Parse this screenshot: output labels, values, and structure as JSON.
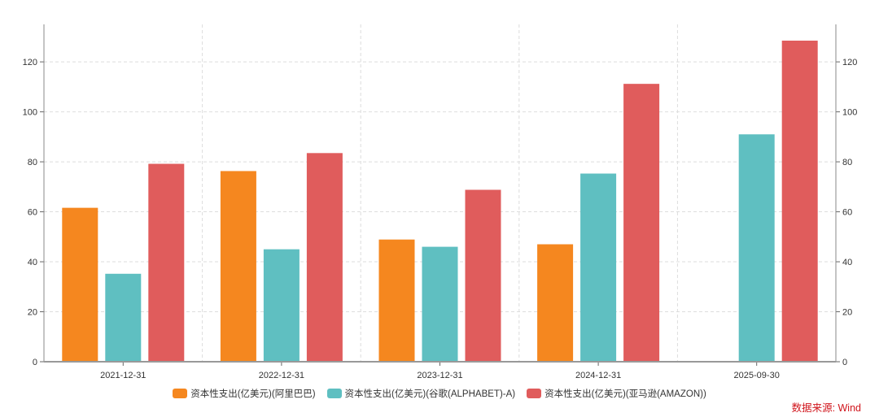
{
  "chart_data": {
    "type": "bar",
    "categories": [
      "2021-12-31",
      "2022-12-31",
      "2023-12-31",
      "2024-12-31",
      "2025-09-30"
    ],
    "series": [
      {
        "name": "资本性支出(亿美元)(阿里巴巴)",
        "color": "#f5871f",
        "values": [
          61.6,
          76.3,
          48.9,
          47.0,
          null
        ]
      },
      {
        "name": "资本性支出(亿美元)(谷歌(ALPHABET)-A)",
        "color": "#5fbfc1",
        "values": [
          35.2,
          45.0,
          46.0,
          75.3,
          91.0
        ]
      },
      {
        "name": "资本性支出(亿美元)(亚马逊(AMAZON))",
        "color": "#e05c5c",
        "values": [
          79.2,
          83.5,
          68.8,
          111.2,
          128.5
        ]
      }
    ],
    "ylim": [
      0,
      135
    ],
    "yticks": [
      0,
      20,
      40,
      60,
      80,
      100,
      120
    ],
    "dual_y_axis": true,
    "grid": true,
    "legend_placement": "bottom"
  },
  "source": "数据来源: Wind"
}
